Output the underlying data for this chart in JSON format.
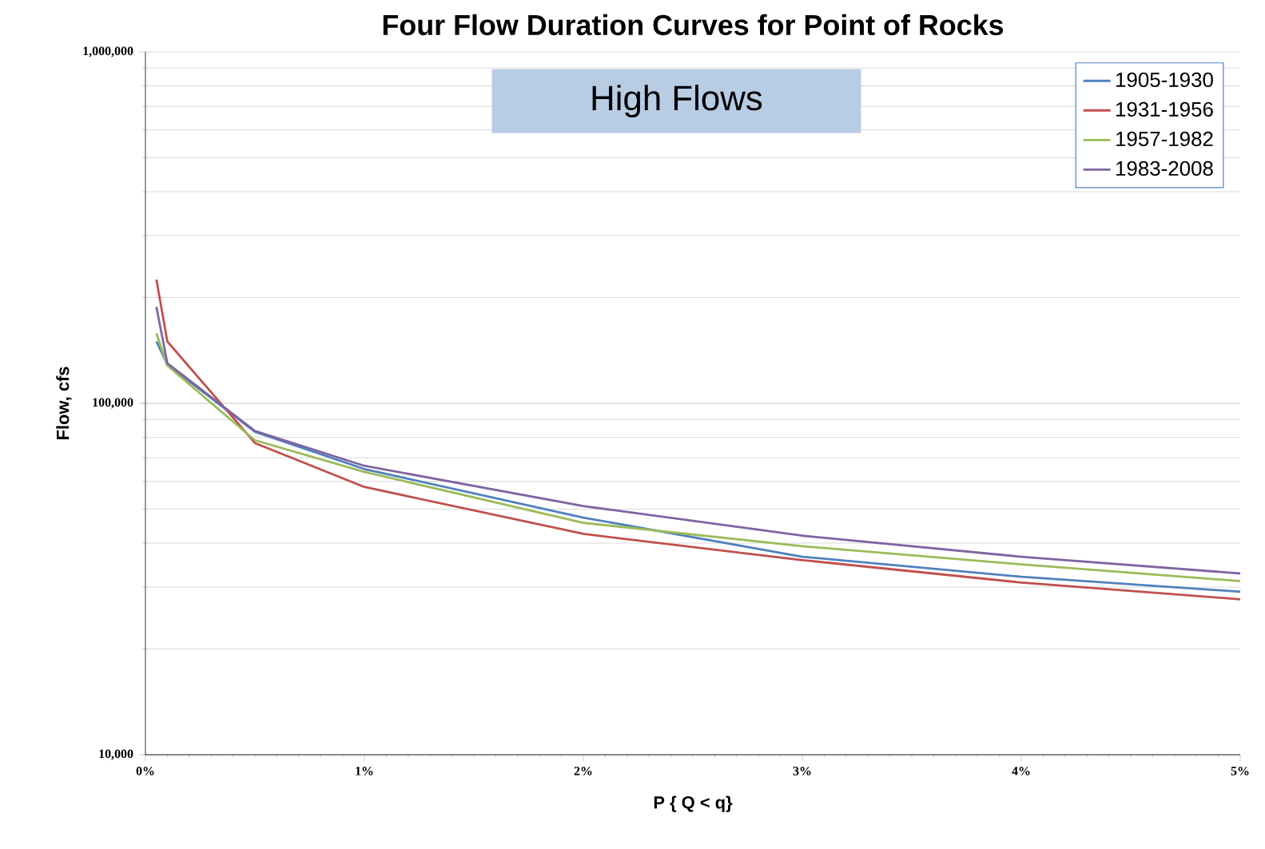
{
  "chart_data": {
    "type": "line",
    "title": "Four Flow Duration Curves for Point of Rocks",
    "xlabel": "P { Q < q}",
    "ylabel": "Flow, cfs",
    "annotations": [
      "High Flows"
    ],
    "x": [
      0.05,
      0.1,
      0.5,
      1,
      2,
      3,
      4,
      5
    ],
    "series": [
      {
        "name": "1905-1930",
        "color": "#4f81bd",
        "values": [
          150000,
          129000,
          83000,
          65000,
          47300,
          36600,
          32100,
          29100
        ]
      },
      {
        "name": "1931-1956",
        "color": "#c0504d",
        "values": [
          225000,
          150000,
          77100,
          57800,
          42500,
          35800,
          30900,
          27700
        ]
      },
      {
        "name": "1957-1982",
        "color": "#9bbb59",
        "values": [
          158000,
          128000,
          78500,
          63800,
          45700,
          39200,
          34800,
          31200
        ]
      },
      {
        "name": "1983-2008",
        "color": "#8064a2",
        "values": [
          188000,
          130000,
          83400,
          66400,
          51000,
          42000,
          36600,
          32800
        ]
      }
    ],
    "xlim": [
      0,
      5
    ],
    "ylim": [
      10000,
      1000000
    ],
    "xticks": [
      {
        "value": 0,
        "label": "0%"
      },
      {
        "value": 1,
        "label": "1%"
      },
      {
        "value": 2,
        "label": "2%"
      },
      {
        "value": 3,
        "label": "3%"
      },
      {
        "value": 4,
        "label": "4%"
      },
      {
        "value": 5,
        "label": "5%"
      }
    ],
    "yticks": [
      {
        "value": 10000,
        "label": "10,000"
      },
      {
        "value": 100000,
        "label": "100,000"
      },
      {
        "value": 1000000,
        "label": "1,000,000"
      }
    ],
    "log": "y",
    "grid": "y",
    "legend": "top right",
    "marker": "none",
    "line_style": "solid"
  }
}
